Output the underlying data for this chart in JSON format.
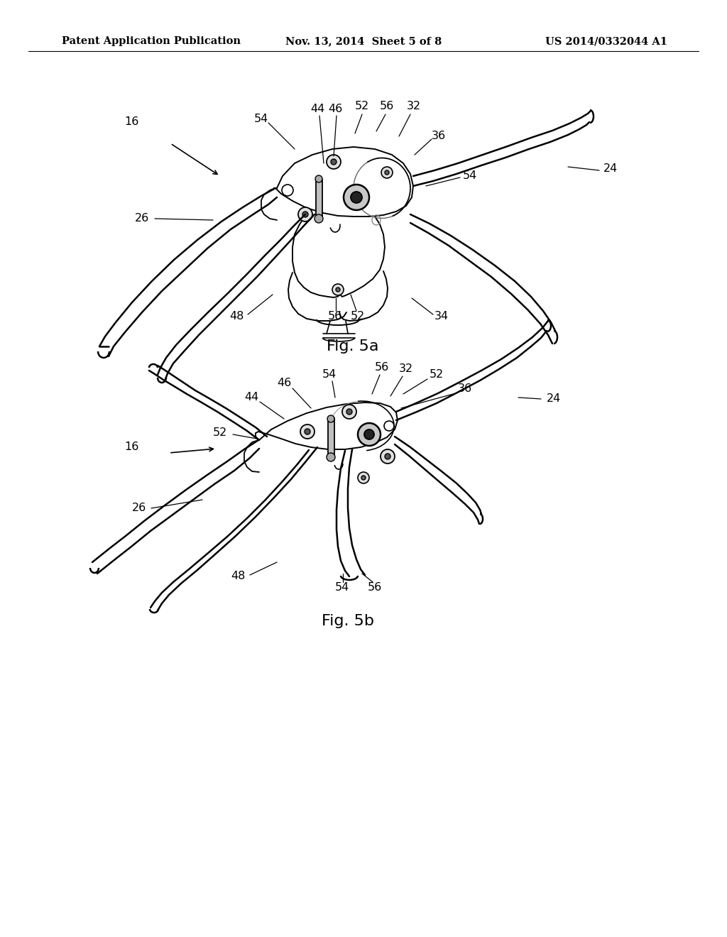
{
  "background_color": "#ffffff",
  "header_left": "Patent Application Publication",
  "header_mid": "Nov. 13, 2014  Sheet 5 of 8",
  "header_right": "US 2014/0332044 A1",
  "fig5a_label": "Fig. 5a",
  "fig5b_label": "Fig. 5b",
  "header_fontsize": 10.5,
  "label_fontsize": 16,
  "ref_fontsize": 11.5,
  "line_color": "#000000"
}
